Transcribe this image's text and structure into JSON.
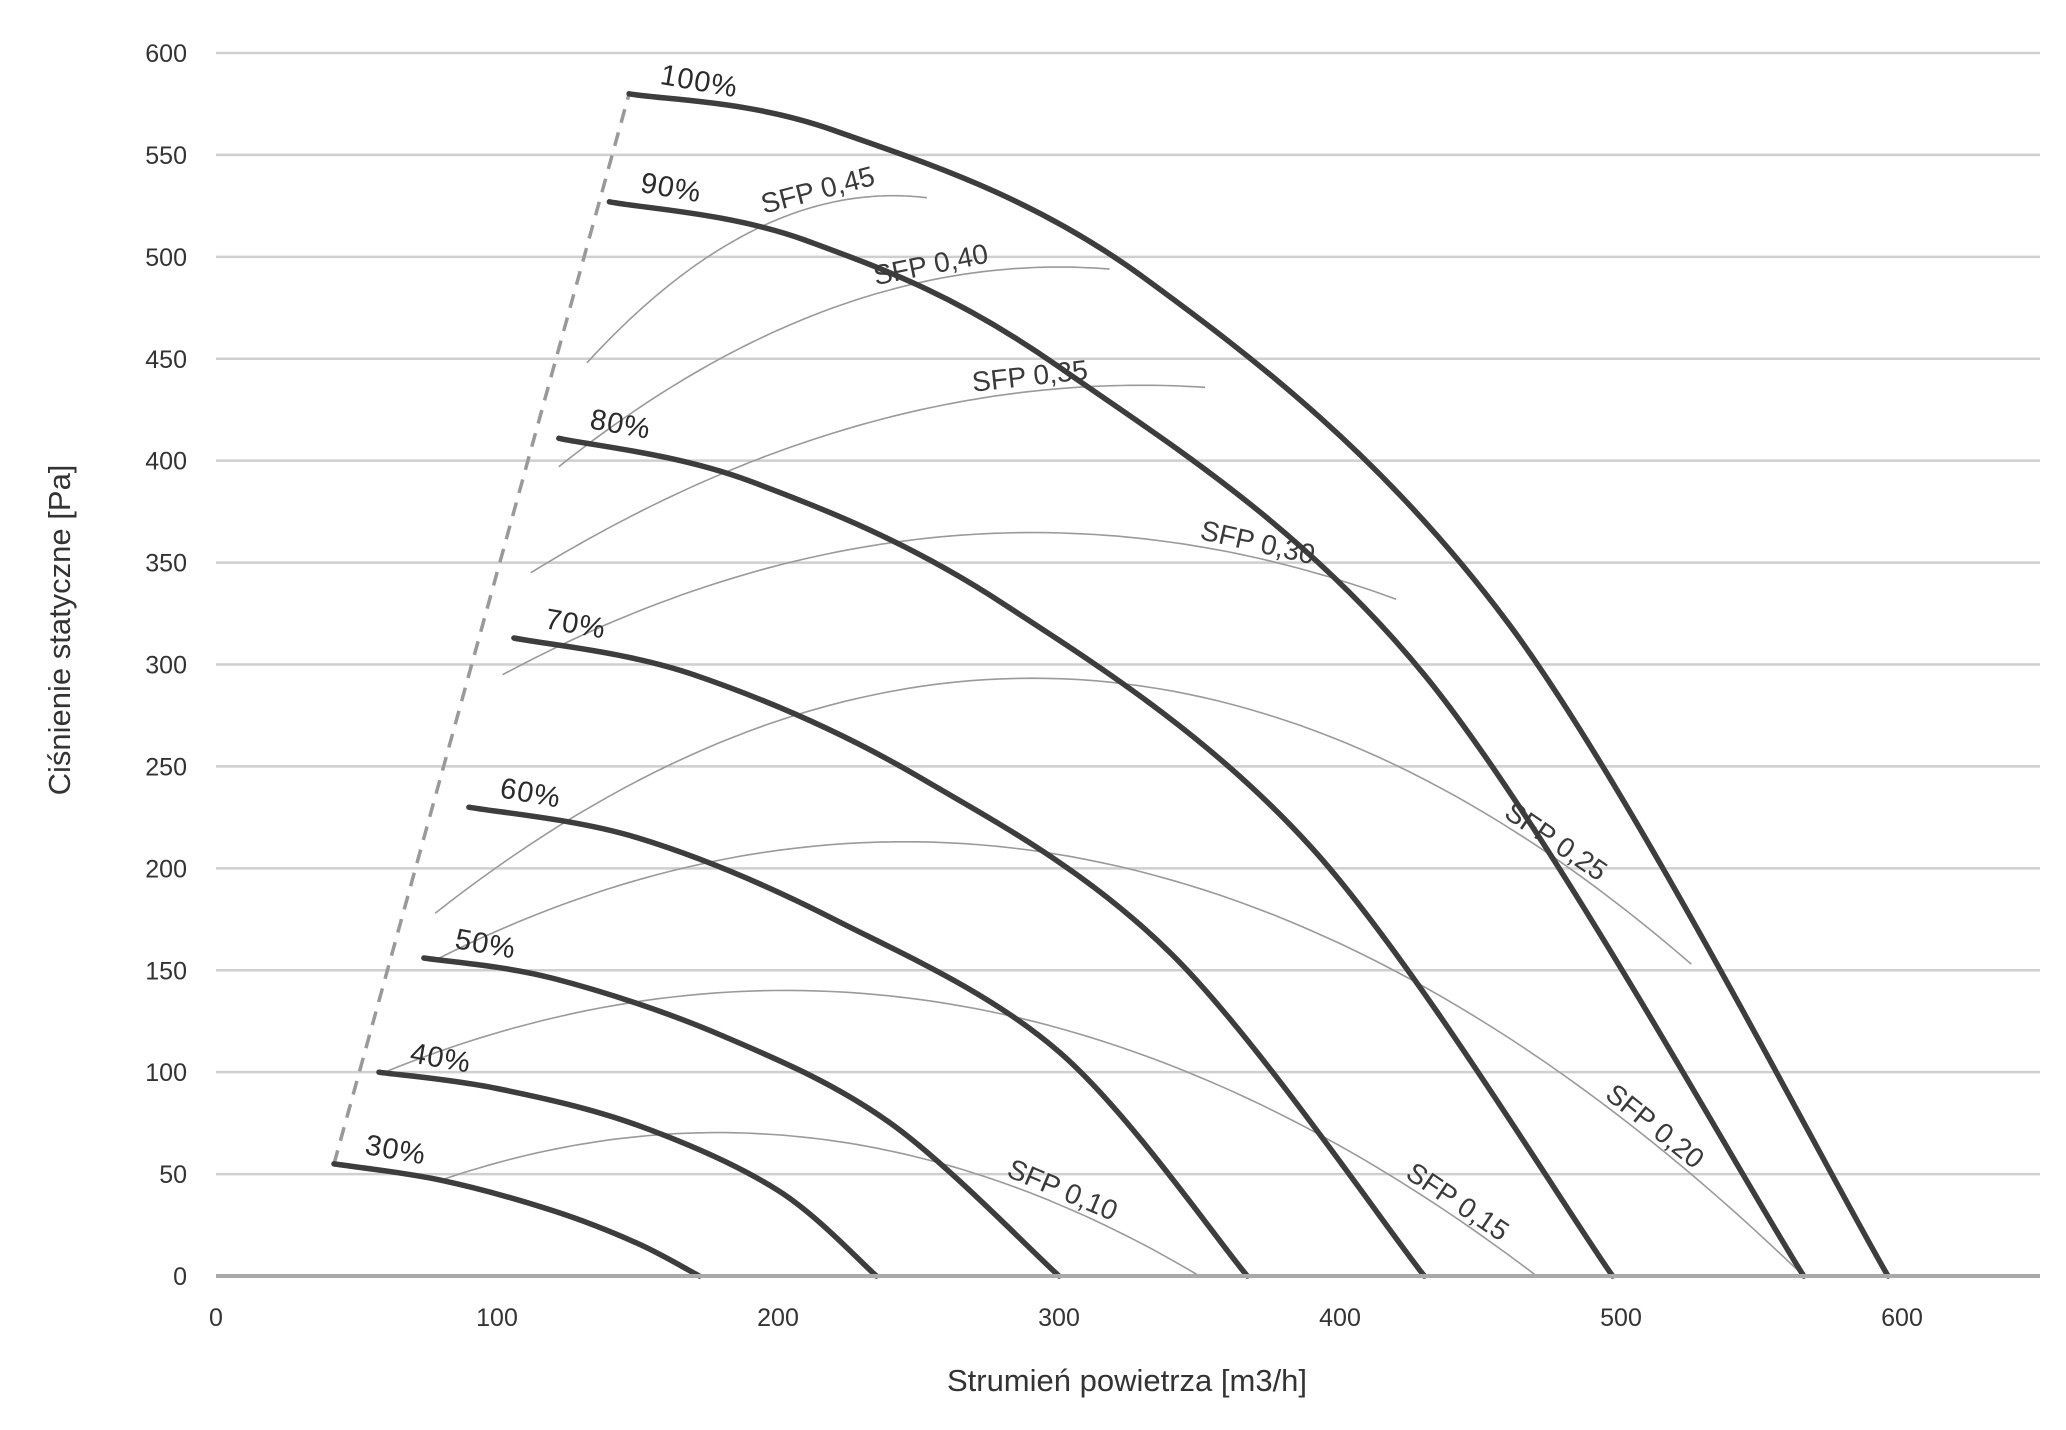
{
  "chart_data": {
    "type": "line",
    "xlabel": "Strumień powietrza [m3/h]",
    "ylabel": "Ciśnienie statyczne [Pa]",
    "xlim": [
      0,
      650
    ],
    "ylim": [
      0,
      600
    ],
    "x_ticks": [
      "0",
      "100",
      "200",
      "300",
      "400",
      "500",
      "600"
    ],
    "y_ticks": [
      "0",
      "50",
      "100",
      "150",
      "200",
      "250",
      "300",
      "350",
      "400",
      "450",
      "500",
      "550",
      "600"
    ],
    "grid": "horizontal",
    "fan_curves": [
      {
        "name": "30%",
        "x": [
          42,
          80,
          120,
          150,
          172
        ],
        "y": [
          55,
          47,
          32,
          16,
          0
        ]
      },
      {
        "name": "40%",
        "x": [
          58,
          100,
          150,
          200,
          235
        ],
        "y": [
          100,
          92,
          74,
          42,
          0
        ]
      },
      {
        "name": "50%",
        "x": [
          74,
          120,
          180,
          240,
          300
        ],
        "y": [
          156,
          146,
          118,
          75,
          0
        ]
      },
      {
        "name": "60%",
        "x": [
          90,
          150,
          220,
          300,
          367
        ],
        "y": [
          230,
          215,
          175,
          110,
          0
        ]
      },
      {
        "name": "70%",
        "x": [
          106,
          170,
          250,
          340,
          430
        ],
        "y": [
          313,
          295,
          245,
          158,
          0
        ]
      },
      {
        "name": "80%",
        "x": [
          122,
          190,
          280,
          390,
          497
        ],
        "y": [
          411,
          390,
          330,
          210,
          0
        ]
      },
      {
        "name": "90%",
        "x": [
          140,
          210,
          300,
          430,
          565
        ],
        "y": [
          527,
          508,
          446,
          295,
          0
        ]
      },
      {
        "name": "100%",
        "x": [
          147,
          220,
          330,
          460,
          595
        ],
        "y": [
          580,
          562,
          490,
          320,
          0
        ]
      }
    ],
    "envelope": {
      "x": [
        42,
        147
      ],
      "y": [
        55,
        580
      ]
    },
    "sfp_lines": [
      {
        "name": "SFP 0,10",
        "x": [
          80,
          210,
          350
        ],
        "y": [
          47,
          68,
          0
        ]
      },
      {
        "name": "SFP 0,15",
        "x": [
          60,
          210,
          470
        ],
        "y": [
          100,
          140,
          0
        ]
      },
      {
        "name": "SFP 0,20",
        "x": [
          78,
          250,
          565
        ],
        "y": [
          155,
          213,
          0
        ]
      },
      {
        "name": "SFP 0,25",
        "x": [
          78,
          280,
          525
        ],
        "y": [
          178,
          293,
          153
        ]
      },
      {
        "name": "SFP 0,30",
        "x": [
          102,
          310,
          420
        ],
        "y": [
          295,
          364,
          332
        ]
      },
      {
        "name": "SFP 0,35",
        "x": [
          112,
          330,
          352
        ],
        "y": [
          345,
          437,
          436
        ]
      },
      {
        "name": "SFP 0,40",
        "x": [
          122,
          300,
          318
        ],
        "y": [
          397,
          495,
          494
        ]
      },
      {
        "name": "SFP 0,45",
        "x": [
          132,
          240,
          253
        ],
        "y": [
          448,
          530,
          529
        ]
      }
    ]
  }
}
